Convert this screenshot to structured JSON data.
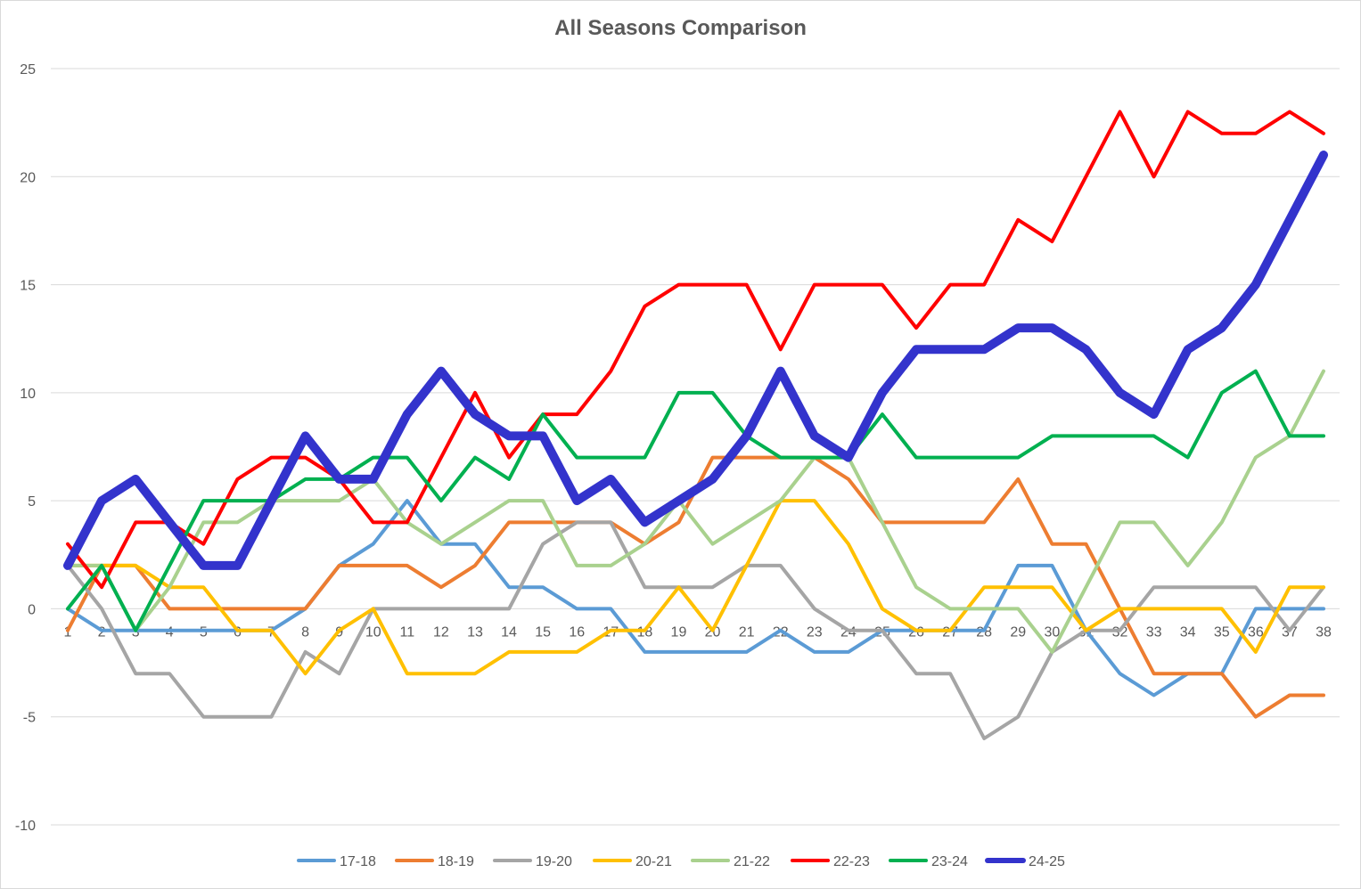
{
  "chart_data": {
    "type": "line",
    "title": "All Seasons Comparison",
    "xlabel": "",
    "ylabel": "",
    "x": [
      1,
      2,
      3,
      4,
      5,
      6,
      7,
      8,
      9,
      10,
      11,
      12,
      13,
      14,
      15,
      16,
      17,
      18,
      19,
      20,
      21,
      22,
      23,
      24,
      25,
      26,
      27,
      28,
      29,
      30,
      31,
      32,
      33,
      34,
      35,
      36,
      37,
      38
    ],
    "ylim": [
      -10,
      25
    ],
    "yticks": [
      -10,
      -5,
      0,
      5,
      10,
      15,
      20,
      25
    ],
    "grid": true,
    "legend_position": "bottom",
    "series": [
      {
        "name": "17-18",
        "color": "#5b9bd5",
        "width": 4,
        "values": [
          0,
          -1,
          -1,
          -1,
          -1,
          -1,
          -1,
          0,
          2,
          3,
          5,
          3,
          3,
          1,
          1,
          0,
          0,
          -2,
          -2,
          -2,
          -2,
          -1,
          -2,
          -2,
          -1,
          -1,
          -1,
          -1,
          2,
          2,
          -1,
          -3,
          -4,
          -3,
          -3,
          0,
          0,
          0
        ]
      },
      {
        "name": "18-19",
        "color": "#ed7d31",
        "width": 4,
        "values": [
          -1,
          2,
          2,
          0,
          0,
          0,
          0,
          0,
          2,
          2,
          2,
          1,
          2,
          4,
          4,
          4,
          4,
          3,
          4,
          7,
          7,
          7,
          7,
          6,
          4,
          4,
          4,
          4,
          6,
          3,
          3,
          0,
          -3,
          -3,
          -3,
          -5,
          -4,
          -4
        ]
      },
      {
        "name": "19-20",
        "color": "#a5a5a5",
        "width": 4,
        "values": [
          2,
          0,
          -3,
          -3,
          -5,
          -5,
          -5,
          -2,
          -3,
          0,
          0,
          0,
          0,
          0,
          3,
          4,
          4,
          1,
          1,
          1,
          2,
          2,
          0,
          -1,
          -1,
          -3,
          -3,
          -6,
          -5,
          -2,
          -1,
          -1,
          1,
          1,
          1,
          1,
          -1,
          1
        ]
      },
      {
        "name": "20-21",
        "color": "#ffc000",
        "width": 4,
        "values": [
          2,
          2,
          2,
          1,
          1,
          -1,
          -1,
          -3,
          -1,
          0,
          -3,
          -3,
          -3,
          -2,
          -2,
          -2,
          -1,
          -1,
          1,
          -1,
          2,
          5,
          5,
          3,
          0,
          -1,
          -1,
          1,
          1,
          1,
          -1,
          0,
          0,
          0,
          0,
          -2,
          1,
          1
        ]
      },
      {
        "name": "21-22",
        "color": "#a9d18e",
        "width": 4,
        "values": [
          2,
          2,
          -1,
          1,
          4,
          4,
          5,
          5,
          5,
          6,
          4,
          3,
          4,
          5,
          5,
          2,
          2,
          3,
          5,
          3,
          4,
          5,
          7,
          7,
          4,
          1,
          0,
          0,
          0,
          -2,
          1,
          4,
          4,
          2,
          4,
          7,
          8,
          11
        ]
      },
      {
        "name": "22-23",
        "color": "#ff0000",
        "width": 4,
        "values": [
          3,
          1,
          4,
          4,
          3,
          6,
          7,
          7,
          6,
          4,
          4,
          7,
          10,
          7,
          9,
          9,
          11,
          14,
          15,
          15,
          15,
          12,
          15,
          15,
          15,
          13,
          15,
          15,
          18,
          17,
          20,
          23,
          20,
          23,
          22,
          22,
          23,
          22
        ]
      },
      {
        "name": "23-24",
        "color": "#00b050",
        "width": 4,
        "values": [
          0,
          2,
          -1,
          2,
          5,
          5,
          5,
          6,
          6,
          7,
          7,
          5,
          7,
          6,
          9,
          7,
          7,
          7,
          10,
          10,
          8,
          7,
          7,
          7,
          9,
          7,
          7,
          7,
          7,
          8,
          8,
          8,
          8,
          7,
          10,
          11,
          8,
          8
        ]
      },
      {
        "name": "24-25",
        "color": "#3333cc",
        "width": 10,
        "values": [
          2,
          5,
          6,
          4,
          2,
          2,
          5,
          8,
          6,
          6,
          9,
          11,
          9,
          8,
          8,
          5,
          6,
          4,
          5,
          6,
          8,
          11,
          8,
          7,
          10,
          12,
          12,
          12,
          13,
          13,
          12,
          10,
          9,
          12,
          13,
          15,
          18,
          21
        ]
      }
    ]
  }
}
